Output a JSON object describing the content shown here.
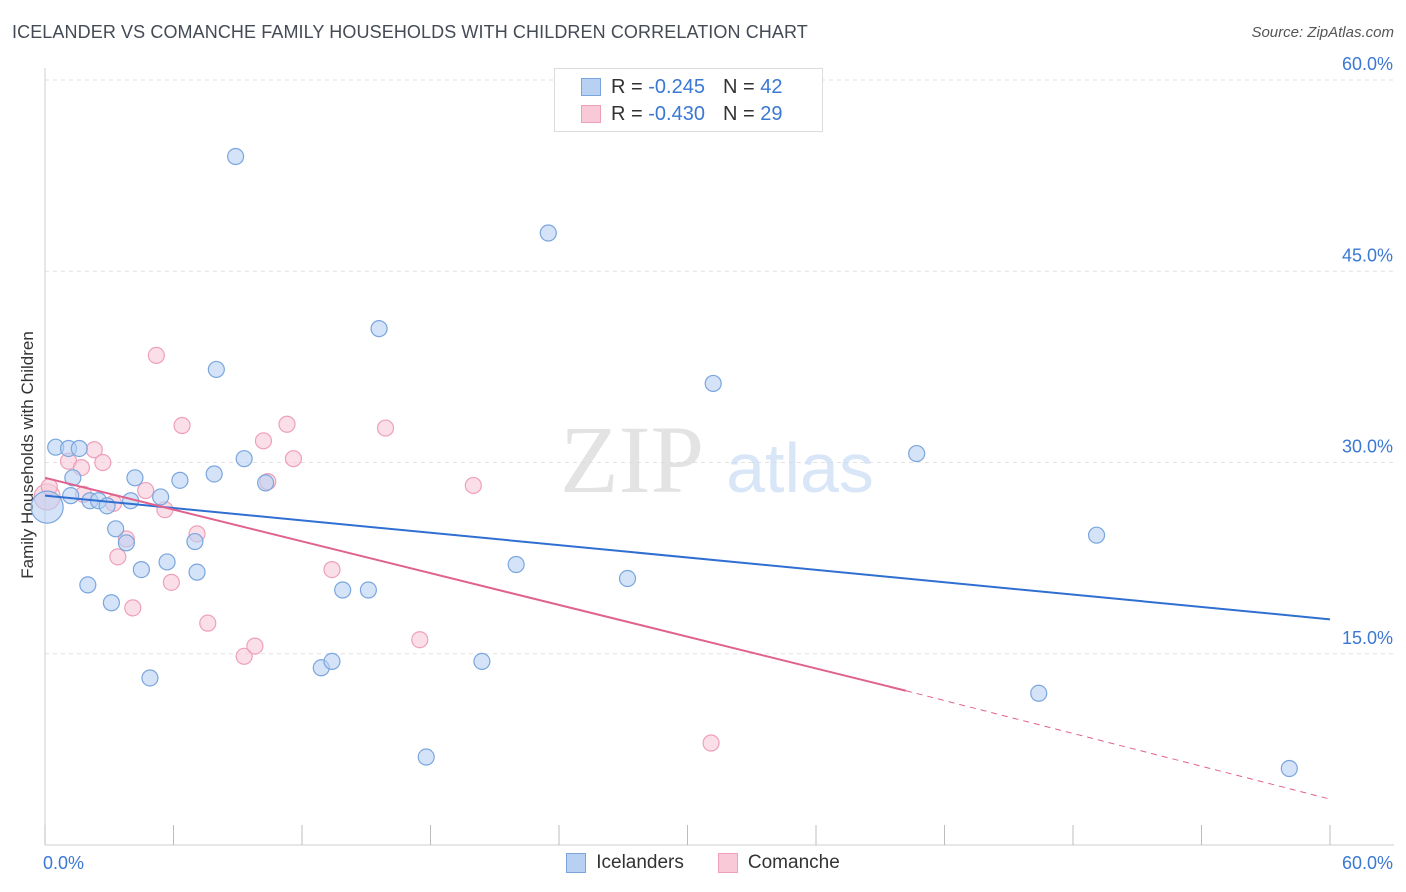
{
  "header": {
    "title": "ICELANDER VS COMANCHE FAMILY HOUSEHOLDS WITH CHILDREN CORRELATION CHART",
    "source": "Source: ZipAtlas.com"
  },
  "watermark": {
    "zip": "ZIP",
    "atlas": "atlas"
  },
  "legend_top": {
    "rows": [
      {
        "r_label": "R = ",
        "r_value": "-0.245",
        "n_label": "N = ",
        "n_value": "42"
      },
      {
        "r_label": "R = ",
        "r_value": "-0.430",
        "n_label": "N = ",
        "n_value": "29"
      }
    ]
  },
  "legend_bottom": {
    "items": [
      "Icelanders",
      "Comanche"
    ]
  },
  "colors": {
    "icelanders_fill": "#b8d1f3",
    "icelanders_stroke": "#7aa6dd",
    "icelanders_line": "#2f6fd1",
    "comanche_fill": "#f9c9d8",
    "comanche_stroke": "#eea0b8",
    "comanche_line": "#e0628e",
    "axis_label": "#3a78d4",
    "grid": "#e2e2e2"
  },
  "chart_data": {
    "type": "scatter",
    "title": "ICELANDER VS COMANCHE FAMILY HOUSEHOLDS WITH CHILDREN CORRELATION CHART",
    "xlabel": "",
    "ylabel": "Family Households with Children",
    "xlim": [
      0,
      60
    ],
    "ylim": [
      0,
      60
    ],
    "x_tick_labels": [
      "0.0%",
      "60.0%"
    ],
    "y_ticks": [
      15,
      30,
      45,
      60
    ],
    "y_tick_labels": [
      "15.0%",
      "30.0%",
      "45.0%",
      "60.0%"
    ],
    "grid": true,
    "legend_position": "top-center",
    "series": [
      {
        "name": "Icelanders",
        "r": -0.245,
        "n": 42,
        "trend": {
          "x": [
            0,
            60
          ],
          "y": [
            27.4,
            17.7
          ],
          "dashed_from": null
        },
        "points": [
          [
            0.1,
            26.5
          ],
          [
            0.5,
            31.2
          ],
          [
            1.1,
            31.1
          ],
          [
            1.2,
            27.4
          ],
          [
            1.3,
            28.8
          ],
          [
            1.6,
            31.1
          ],
          [
            2.0,
            20.4
          ],
          [
            2.1,
            27.0
          ],
          [
            2.5,
            27.0
          ],
          [
            2.9,
            26.6
          ],
          [
            3.1,
            19.0
          ],
          [
            3.3,
            24.8
          ],
          [
            3.8,
            23.7
          ],
          [
            4.0,
            27.0
          ],
          [
            4.2,
            28.8
          ],
          [
            4.5,
            21.6
          ],
          [
            4.9,
            13.1
          ],
          [
            5.4,
            27.3
          ],
          [
            5.7,
            22.2
          ],
          [
            6.3,
            28.6
          ],
          [
            7.0,
            23.8
          ],
          [
            7.1,
            21.4
          ],
          [
            7.9,
            29.1
          ],
          [
            8.0,
            37.3
          ],
          [
            8.9,
            54.0
          ],
          [
            9.3,
            30.3
          ],
          [
            10.3,
            28.4
          ],
          [
            12.9,
            13.9
          ],
          [
            13.4,
            14.4
          ],
          [
            13.9,
            20.0
          ],
          [
            15.1,
            20.0
          ],
          [
            15.6,
            40.5
          ],
          [
            17.8,
            6.9
          ],
          [
            20.4,
            14.4
          ],
          [
            22.0,
            22.0
          ],
          [
            23.5,
            48.0
          ],
          [
            27.2,
            20.9
          ],
          [
            31.2,
            36.2
          ],
          [
            40.7,
            30.7
          ],
          [
            46.4,
            11.9
          ],
          [
            49.1,
            24.3
          ],
          [
            58.1,
            6.0
          ]
        ]
      },
      {
        "name": "Comanche",
        "r": -0.43,
        "n": 29,
        "trend": {
          "x": [
            0,
            40.2,
            60
          ],
          "y": [
            28.8,
            12.1,
            3.6
          ],
          "dashed_from": 40.2
        },
        "points": [
          [
            0.1,
            27.3
          ],
          [
            0.2,
            28.1
          ],
          [
            1.1,
            30.1
          ],
          [
            1.7,
            29.6
          ],
          [
            1.8,
            27.5
          ],
          [
            2.3,
            31.0
          ],
          [
            2.7,
            30.0
          ],
          [
            3.2,
            26.8
          ],
          [
            3.4,
            22.6
          ],
          [
            3.8,
            24.0
          ],
          [
            4.1,
            18.6
          ],
          [
            4.7,
            27.8
          ],
          [
            5.2,
            38.4
          ],
          [
            5.6,
            26.3
          ],
          [
            5.9,
            20.6
          ],
          [
            6.4,
            32.9
          ],
          [
            7.1,
            24.4
          ],
          [
            7.6,
            17.4
          ],
          [
            9.3,
            14.8
          ],
          [
            9.8,
            15.6
          ],
          [
            10.2,
            31.7
          ],
          [
            10.4,
            28.5
          ],
          [
            11.3,
            33.0
          ],
          [
            11.6,
            30.3
          ],
          [
            13.4,
            21.6
          ],
          [
            15.9,
            32.7
          ],
          [
            17.5,
            16.1
          ],
          [
            20.0,
            28.2
          ],
          [
            31.1,
            8.0
          ]
        ]
      }
    ]
  }
}
